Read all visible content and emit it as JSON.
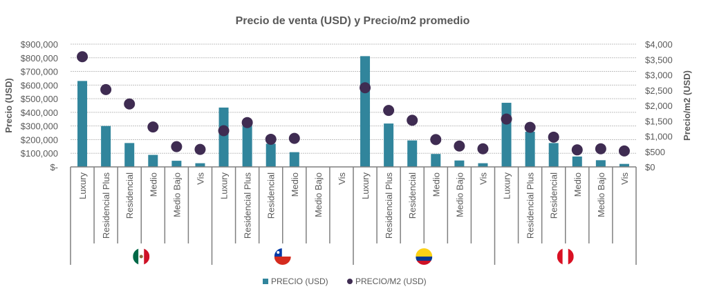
{
  "chart_data": {
    "type": "bar",
    "title": "Precio de venta (USD) y Precio/m2 promedio",
    "ylabel": "Precio (USD)",
    "y2label": "Precio/m2 (USD)",
    "ylim": [
      0,
      900000
    ],
    "y2lim": [
      0,
      4000
    ],
    "yticks": [
      "$-",
      "$100,000",
      "$200,000",
      "$300,000",
      "$400,000",
      "$500,000",
      "$600,000",
      "$700,000",
      "$800,000",
      "$900,000"
    ],
    "y2ticks": [
      "$0",
      "$500",
      "$1,000",
      "$1,500",
      "$2,000",
      "$2,500",
      "$3,000",
      "$3,500",
      "$4,000"
    ],
    "grid": true,
    "legend_position": "bottom",
    "categories": [
      "Luxury",
      "Residencial Plus",
      "Residencial",
      "Medio",
      "Medio Bajo",
      "Vis"
    ],
    "groups": [
      {
        "country": "mexico",
        "flag_icon": "mexico-flag-icon"
      },
      {
        "country": "chile",
        "flag_icon": "chile-flag-icon"
      },
      {
        "country": "colombia",
        "flag_icon": "colombia-flag-icon"
      },
      {
        "country": "peru",
        "flag_icon": "peru-flag-icon"
      }
    ],
    "series": [
      {
        "name": "PRECIO (USD)",
        "kind": "bar",
        "axis": "left",
        "color": "#31859c",
        "values": [
          [
            630000,
            300000,
            175000,
            88000,
            45000,
            27000
          ],
          [
            435000,
            320000,
            170000,
            108000,
            null,
            null
          ],
          [
            812000,
            318000,
            194000,
            95000,
            47000,
            27000
          ],
          [
            470000,
            258000,
            175000,
            76000,
            49000,
            22000
          ]
        ]
      },
      {
        "name": "PRECIO/M2 (USD)",
        "kind": "scatter",
        "axis": "right",
        "color": "#3f2c52",
        "values": [
          [
            3590,
            2520,
            2050,
            1300,
            660,
            570
          ],
          [
            1180,
            1445,
            900,
            930,
            null,
            null
          ],
          [
            2580,
            1840,
            1520,
            890,
            680,
            590
          ],
          [
            1560,
            1290,
            970,
            555,
            590,
            520
          ]
        ]
      }
    ]
  }
}
